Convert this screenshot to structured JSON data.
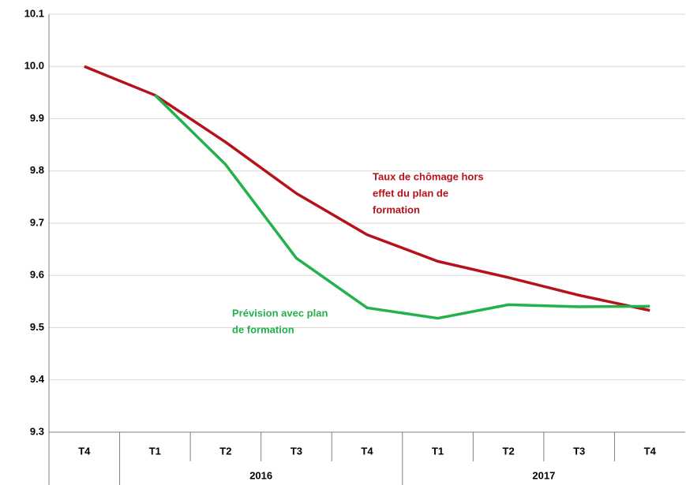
{
  "chart_data": {
    "type": "line",
    "categories": [
      "T4",
      "T1",
      "T2",
      "T3",
      "T4",
      "T1",
      "T2",
      "T3",
      "T4"
    ],
    "group_labels": [
      "2016",
      "2017"
    ],
    "series": [
      {
        "name": "Taux de chômage hors effet du plan de formation",
        "color": "#b5121b",
        "values": [
          10.0,
          9.945,
          9.855,
          9.757,
          9.678,
          9.627,
          9.596,
          9.562,
          9.533
        ]
      },
      {
        "name": "Prévision  avec plan de formation",
        "color": "#22b14c",
        "values": [
          null,
          9.945,
          9.812,
          9.633,
          9.538,
          9.518,
          9.544,
          9.54,
          9.541
        ]
      }
    ],
    "annotations": [
      {
        "lines": [
          "Taux de chômage hors",
          "effet du plan de",
          "formation"
        ],
        "color": "#b5121b"
      },
      {
        "lines": [
          "Prévision  avec plan",
          "de formation"
        ],
        "color": "#22b14c"
      }
    ],
    "ylim": [
      9.3,
      10.1
    ],
    "yticks": [
      9.3,
      9.4,
      9.5,
      9.6,
      9.7,
      9.8,
      9.9,
      {
        "value": 10,
        "label": "10.0"
      },
      10.1
    ],
    "grid": true
  }
}
